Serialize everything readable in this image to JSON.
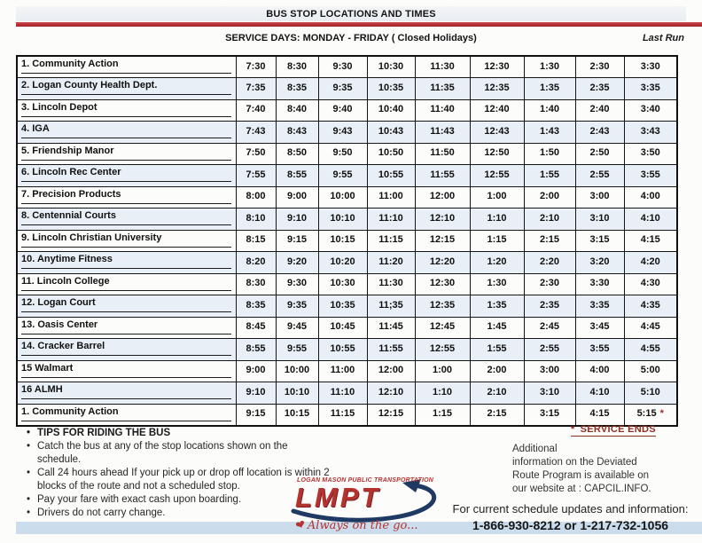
{
  "header": {
    "title": "BUS STOP LOCATIONS AND TIMES",
    "service_days": "SERVICE DAYS:  MONDAY  -  FRIDAY ( Closed Holidays)",
    "last_run": "Last Run"
  },
  "schedule": {
    "rows": [
      {
        "stop": "1. Community Action",
        "times": [
          "7:30",
          "8:30",
          "9:30",
          "10:30",
          "11:30",
          "12:30",
          "1:30",
          "2:30",
          "3:30"
        ]
      },
      {
        "stop": "2. Logan County Health Dept.",
        "times": [
          "7:35",
          "8:35",
          "9:35",
          "10:35",
          "11:35",
          "12:35",
          "1:35",
          "2:35",
          "3:35"
        ]
      },
      {
        "stop": "3. Lincoln Depot",
        "times": [
          "7:40",
          "8:40",
          "9:40",
          "10:40",
          "11:40",
          "12:40",
          "1:40",
          "2:40",
          "3:40"
        ]
      },
      {
        "stop": "4. IGA",
        "times": [
          "7:43",
          "8:43",
          "9:43",
          "10:43",
          "11:43",
          "12:43",
          "1:43",
          "2:43",
          "3:43"
        ]
      },
      {
        "stop": "5. Friendship Manor",
        "times": [
          "7:50",
          "8:50",
          "9:50",
          "10:50",
          "11:50",
          "12:50",
          "1:50",
          "2:50",
          "3:50"
        ]
      },
      {
        "stop": "6. Lincoln Rec Center",
        "times": [
          "7:55",
          "8:55",
          "9:55",
          "10:55",
          "11:55",
          "12:55",
          "1:55",
          "2:55",
          "3:55"
        ]
      },
      {
        "stop": "7. Precision Products",
        "times": [
          "8:00",
          "9:00",
          "10:00",
          "11:00",
          "12:00",
          "1:00",
          "2:00",
          "3:00",
          "4:00"
        ]
      },
      {
        "stop": "8. Centennial Courts",
        "times": [
          "8:10",
          "9:10",
          "10:10",
          "11:10",
          "12:10",
          "1:10",
          "2:10",
          "3:10",
          "4:10"
        ]
      },
      {
        "stop": "9. Lincoln Christian University",
        "times": [
          "8:15",
          "9:15",
          "10:15",
          "11:15",
          "12:15",
          "1:15",
          "2:15",
          "3:15",
          "4:15"
        ]
      },
      {
        "stop": "10. Anytime Fitness",
        "times": [
          "8:20",
          "9:20",
          "10:20",
          "11:20",
          "12:20",
          "1:20",
          "2:20",
          "3:20",
          "4:20"
        ]
      },
      {
        "stop": "11. Lincoln College",
        "times": [
          "8:30",
          "9:30",
          "10:30",
          "11:30",
          "12:30",
          "1:30",
          "2:30",
          "3:30",
          "4:30"
        ]
      },
      {
        "stop": "12. Logan Court",
        "times": [
          "8:35",
          "9:35",
          "10:35",
          "11;35",
          "12:35",
          "1:35",
          "2:35",
          "3:35",
          "4:35"
        ]
      },
      {
        "stop": "13. Oasis Center",
        "times": [
          "8:45",
          "9:45",
          "10:45",
          "11:45",
          "12:45",
          "1:45",
          "2:45",
          "3:45",
          "4:45"
        ]
      },
      {
        "stop": "14. Cracker Barrel",
        "times": [
          "8:55",
          "9:55",
          "10:55",
          "11:55",
          "12:55",
          "1:55",
          "2:55",
          "3:55",
          "4:55"
        ]
      },
      {
        "stop": "15 Walmart",
        "times": [
          "9:00",
          "10:00",
          "11:00",
          "12:00",
          "1:00",
          "2:00",
          "3:00",
          "4:00",
          "5:00"
        ]
      },
      {
        "stop": "16 ALMH",
        "times": [
          "9:10",
          "10:10",
          "11:10",
          "12:10",
          "1:10",
          "2:10",
          "3:10",
          "4:10",
          "5:10"
        ]
      },
      {
        "stop": "1. Community Action",
        "times": [
          "9:15",
          "10:15",
          "11:15",
          "12:15",
          "1:15",
          "2:15",
          "3:15",
          "4:15",
          "5:15 *"
        ]
      }
    ]
  },
  "tips": {
    "heading": "TIPS FOR RIDING THE BUS",
    "items": [
      "Catch the bus at any of the stop locations shown on the schedule.",
      "Call 24 hours ahead If your pick up or drop off location is within 2 blocks of the route and not a scheduled stop.",
      "Pay your fare with exact cash upon boarding.",
      "Drivers do not carry change."
    ]
  },
  "logo": {
    "org": "LOGAN MASON PUBLIC TRANSPORTATION",
    "acronym": "LMPT",
    "tagline": "Always on the go..."
  },
  "notes": {
    "service_ends_asterisk": "*",
    "service_ends_label": "SERVICE ENDS",
    "additional": "Additional\ninformation on the Deviated\nRoute Program is available on\nour website at :   CAPCIL.INFO."
  },
  "contact": {
    "label": "For current schedule updates and information:",
    "phones": "1-866-930-8212 or 1-217-732-1056"
  },
  "colors": {
    "accent_red": "#b5332e",
    "bar_red": "#a82430",
    "navy": "#1e3a63",
    "maroon": "#8d2e21",
    "band_blue": "#cbdcec",
    "row_tint": "#e8eff6"
  }
}
